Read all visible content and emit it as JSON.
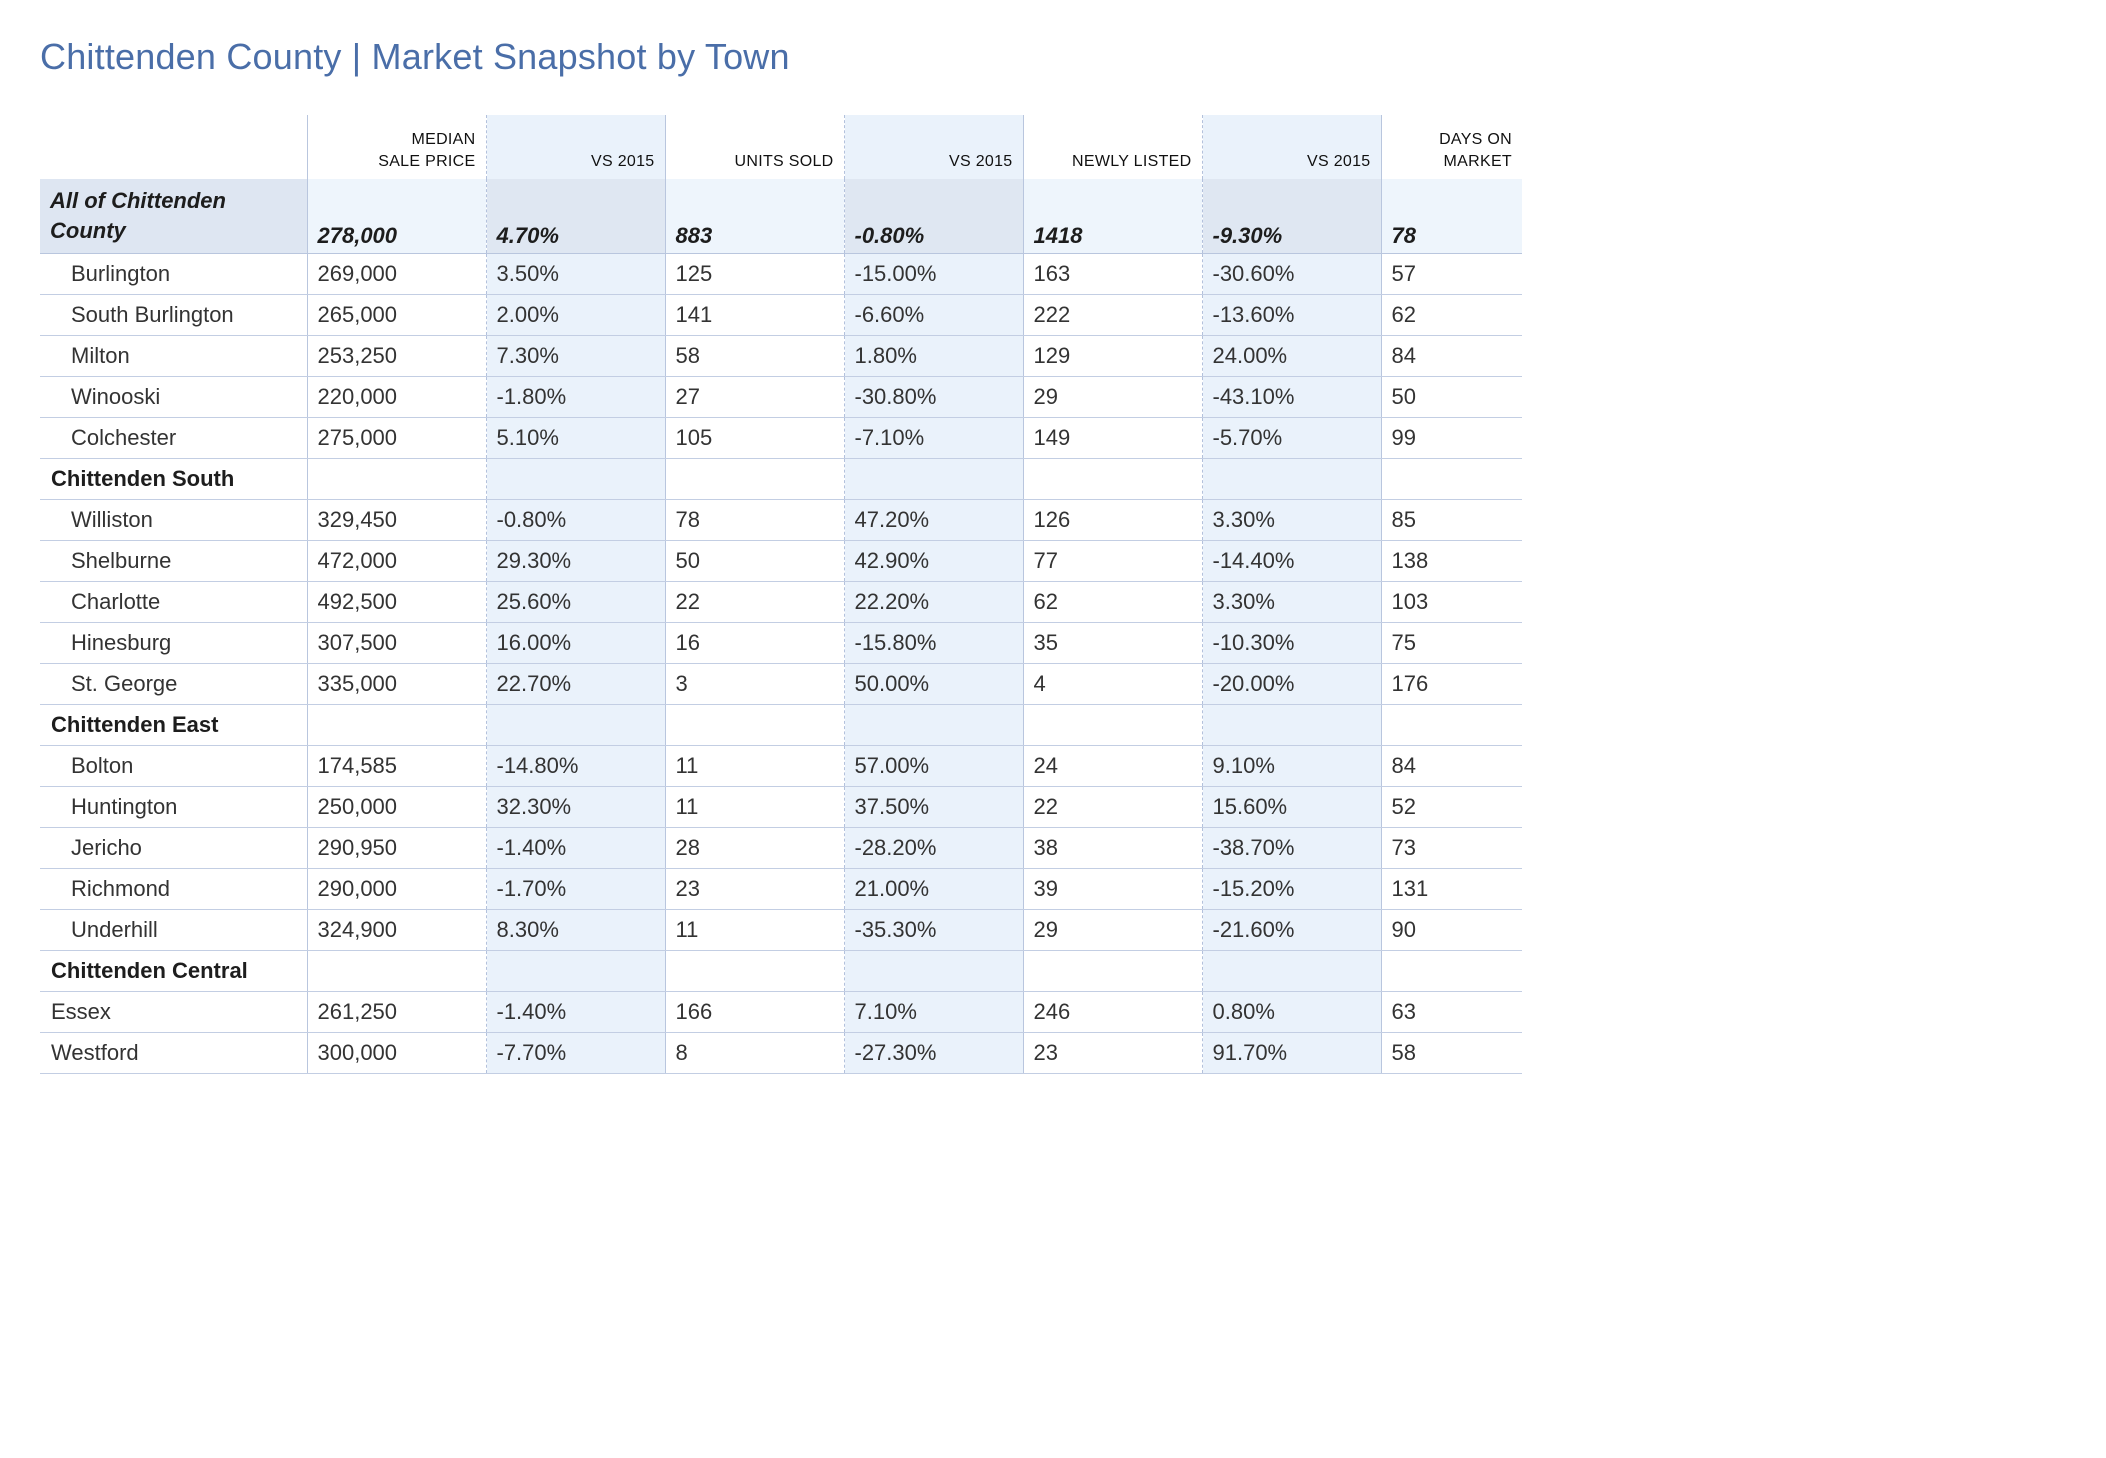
{
  "title": "Chittenden County | Market Snapshot by Town",
  "headers": {
    "median_line1": "MEDIAN",
    "median_line2": "SALE PRICE",
    "vs1": "VS 2015",
    "units": "UNITS SOLD",
    "vs2": "VS 2015",
    "listed": "NEWLY LISTED",
    "vs3": "VS 2015",
    "dom_line1": "DAYS ON",
    "dom_line2": "MARKET"
  },
  "county": {
    "line1": "All of Chittenden",
    "line2": "County",
    "median": "278,000",
    "vs1": "4.70%",
    "units": "883",
    "vs2": "-0.80%",
    "listed": "1418",
    "vs3": "-9.30%",
    "dom": "78"
  },
  "rows": [
    {
      "type": "town",
      "name": "Burlington",
      "median": "269,000",
      "vs1": "3.50%",
      "units": "125",
      "vs2": "-15.00%",
      "listed": "163",
      "vs3": "-30.60%",
      "dom": "57"
    },
    {
      "type": "town",
      "name": "South Burlington",
      "median": "265,000",
      "vs1": "2.00%",
      "units": "141",
      "vs2": "-6.60%",
      "listed": "222",
      "vs3": "-13.60%",
      "dom": "62"
    },
    {
      "type": "town",
      "name": "Milton",
      "median": "253,250",
      "vs1": "7.30%",
      "units": "58",
      "vs2": "1.80%",
      "listed": "129",
      "vs3": "24.00%",
      "dom": "84"
    },
    {
      "type": "town",
      "name": "Winooski",
      "median": "220,000",
      "vs1": "-1.80%",
      "units": "27",
      "vs2": "-30.80%",
      "listed": "29",
      "vs3": "-43.10%",
      "dom": "50"
    },
    {
      "type": "town",
      "name": "Colchester",
      "median": "275,000",
      "vs1": "5.10%",
      "units": "105",
      "vs2": "-7.10%",
      "listed": "149",
      "vs3": "-5.70%",
      "dom": "99"
    },
    {
      "type": "section",
      "name": "Chittenden South"
    },
    {
      "type": "town",
      "name": "Williston",
      "median": "329,450",
      "vs1": "-0.80%",
      "units": "78",
      "vs2": "47.20%",
      "listed": "126",
      "vs3": "3.30%",
      "dom": "85"
    },
    {
      "type": "town",
      "name": "Shelburne",
      "median": "472,000",
      "vs1": "29.30%",
      "units": "50",
      "vs2": "42.90%",
      "listed": "77",
      "vs3": "-14.40%",
      "dom": "138"
    },
    {
      "type": "town",
      "name": "Charlotte",
      "median": "492,500",
      "vs1": "25.60%",
      "units": "22",
      "vs2": "22.20%",
      "listed": "62",
      "vs3": "3.30%",
      "dom": "103"
    },
    {
      "type": "town",
      "name": "Hinesburg",
      "median": "307,500",
      "vs1": "16.00%",
      "units": "16",
      "vs2": "-15.80%",
      "listed": "35",
      "vs3": "-10.30%",
      "dom": "75"
    },
    {
      "type": "town",
      "name": "St. George",
      "median": "335,000",
      "vs1": "22.70%",
      "units": "3",
      "vs2": "50.00%",
      "listed": "4",
      "vs3": "-20.00%",
      "dom": "176"
    },
    {
      "type": "section",
      "name": "Chittenden East"
    },
    {
      "type": "town",
      "name": "Bolton",
      "median": "174,585",
      "vs1": "-14.80%",
      "units": "11",
      "vs2": "57.00%",
      "listed": "24",
      "vs3": "9.10%",
      "dom": "84"
    },
    {
      "type": "town",
      "name": "Huntington",
      "median": "250,000",
      "vs1": "32.30%",
      "units": "11",
      "vs2": "37.50%",
      "listed": "22",
      "vs3": "15.60%",
      "dom": "52"
    },
    {
      "type": "town",
      "name": "Jericho",
      "median": "290,950",
      "vs1": "-1.40%",
      "units": "28",
      "vs2": "-28.20%",
      "listed": "38",
      "vs3": "-38.70%",
      "dom": "73"
    },
    {
      "type": "town",
      "name": "Richmond",
      "median": "290,000",
      "vs1": "-1.70%",
      "units": "23",
      "vs2": "21.00%",
      "listed": "39",
      "vs3": "-15.20%",
      "dom": "131"
    },
    {
      "type": "town",
      "name": "Underhill",
      "median": "324,900",
      "vs1": "8.30%",
      "units": "11",
      "vs2": "-35.30%",
      "listed": "29",
      "vs3": "-21.60%",
      "dom": "90"
    },
    {
      "type": "section",
      "name": "Chittenden Central"
    },
    {
      "type": "plain",
      "name": "Essex",
      "median": "261,250",
      "vs1": "-1.40%",
      "units": "166",
      "vs2": "7.10%",
      "listed": "246",
      "vs3": "0.80%",
      "dom": "63"
    },
    {
      "type": "plain",
      "name": "Westford",
      "median": "300,000",
      "vs1": "-7.70%",
      "units": "8",
      "vs2": "-27.30%",
      "listed": "23",
      "vs3": "91.70%",
      "dom": "58"
    }
  ]
}
